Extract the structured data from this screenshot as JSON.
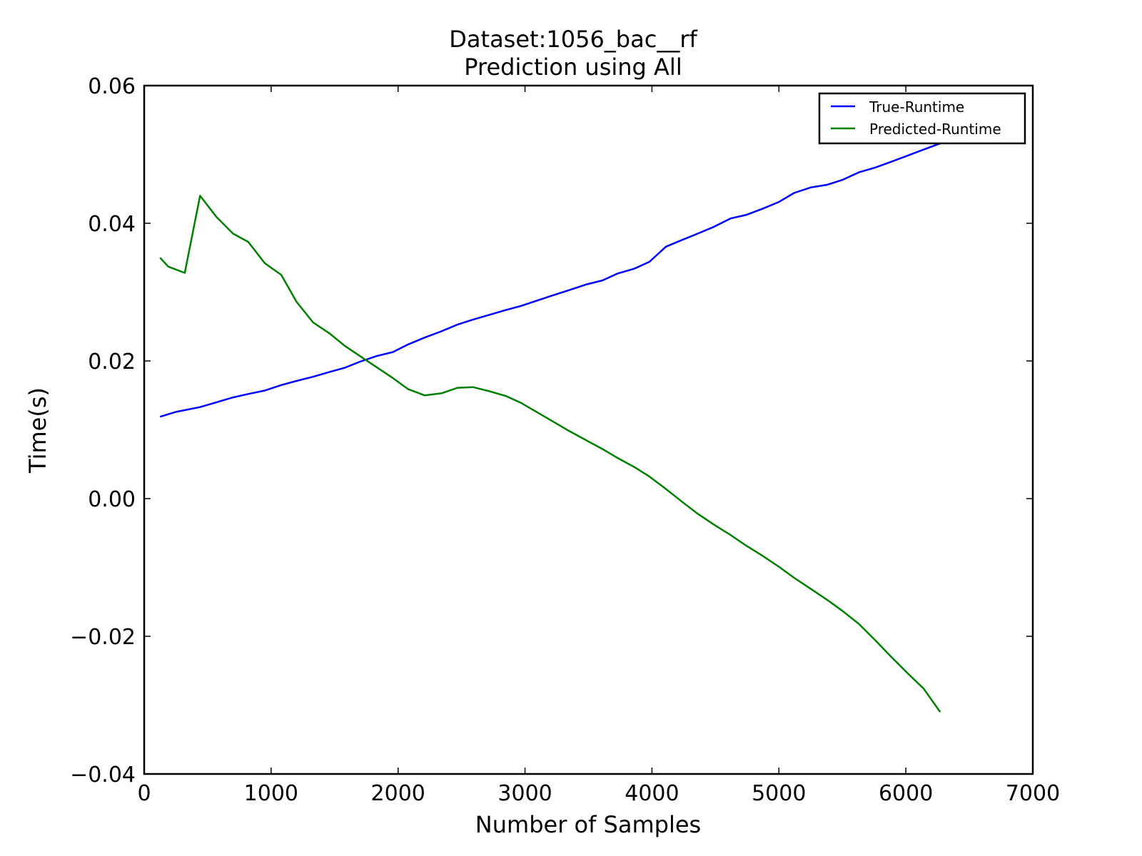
{
  "chart_data": {
    "type": "line",
    "title": "Dataset:1056_bac__rf",
    "subtitle": "Prediction using All",
    "xlabel": "Number of Samples",
    "ylabel": "Time(s)",
    "xlim": [
      0,
      7000
    ],
    "ylim": [
      -0.04,
      0.06
    ],
    "xticks": [
      0,
      1000,
      2000,
      3000,
      4000,
      5000,
      6000,
      7000
    ],
    "xtick_labels": [
      "0",
      "1000",
      "2000",
      "3000",
      "4000",
      "5000",
      "6000",
      "7000"
    ],
    "yticks": [
      -0.04,
      -0.02,
      0.0,
      0.02,
      0.04,
      0.06
    ],
    "ytick_labels": [
      "−0.04",
      "−0.02",
      "0.00",
      "0.02",
      "0.04",
      "0.06"
    ],
    "grid": false,
    "legend_position": "top-right",
    "series": [
      {
        "name": "True-Runtime",
        "color": "#0000ff",
        "x": [
          125,
          250,
          440,
          570,
          700,
          820,
          950,
          1080,
          1200,
          1330,
          1460,
          1580,
          1700,
          1830,
          1960,
          2080,
          2210,
          2340,
          2470,
          2590,
          2720,
          2850,
          2970,
          3100,
          3230,
          3350,
          3480,
          3610,
          3730,
          3860,
          3980,
          4110,
          4240,
          4360,
          4490,
          4620,
          4740,
          4870,
          5000,
          5120,
          5250,
          5380,
          5500,
          5630,
          5760,
          5880,
          6010,
          6140,
          6270
        ],
        "y": [
          0.0119,
          0.0126,
          0.0133,
          0.014,
          0.0147,
          0.0152,
          0.0157,
          0.0165,
          0.0171,
          0.0177,
          0.0184,
          0.019,
          0.0199,
          0.0207,
          0.0213,
          0.0224,
          0.0234,
          0.0243,
          0.0253,
          0.026,
          0.0267,
          0.0274,
          0.028,
          0.0288,
          0.0296,
          0.0303,
          0.0311,
          0.0317,
          0.0327,
          0.0334,
          0.0344,
          0.0366,
          0.0376,
          0.0385,
          0.0395,
          0.0407,
          0.0412,
          0.0421,
          0.0431,
          0.0444,
          0.0452,
          0.0456,
          0.0463,
          0.0474,
          0.0481,
          0.0489,
          0.0498,
          0.0507,
          0.0516
        ]
      },
      {
        "name": "Predicted-Runtime",
        "color": "#008000",
        "x": [
          125,
          190,
          320,
          440,
          570,
          700,
          820,
          950,
          1080,
          1200,
          1330,
          1460,
          1580,
          1700,
          1830,
          1960,
          2080,
          2210,
          2340,
          2470,
          2590,
          2720,
          2850,
          2970,
          3100,
          3230,
          3350,
          3480,
          3610,
          3730,
          3860,
          3980,
          4110,
          4240,
          4360,
          4490,
          4620,
          4740,
          4870,
          5000,
          5120,
          5250,
          5380,
          5500,
          5630,
          5760,
          5880,
          6010,
          6140,
          6270
        ],
        "y": [
          0.035,
          0.0337,
          0.0328,
          0.044,
          0.0409,
          0.0385,
          0.0373,
          0.0342,
          0.0325,
          0.0286,
          0.0256,
          0.024,
          0.0222,
          0.0207,
          0.0191,
          0.0175,
          0.0159,
          0.015,
          0.0153,
          0.0161,
          0.0162,
          0.0156,
          0.0149,
          0.0139,
          0.0125,
          0.0111,
          0.0098,
          0.0085,
          0.0072,
          0.0059,
          0.0046,
          0.0032,
          0.0014,
          -0.0005,
          -0.0022,
          -0.0038,
          -0.0053,
          -0.0068,
          -0.0083,
          -0.0099,
          -0.0115,
          -0.0131,
          -0.0147,
          -0.0163,
          -0.0182,
          -0.0206,
          -0.0229,
          -0.0253,
          -0.0276,
          -0.031
        ]
      }
    ]
  }
}
